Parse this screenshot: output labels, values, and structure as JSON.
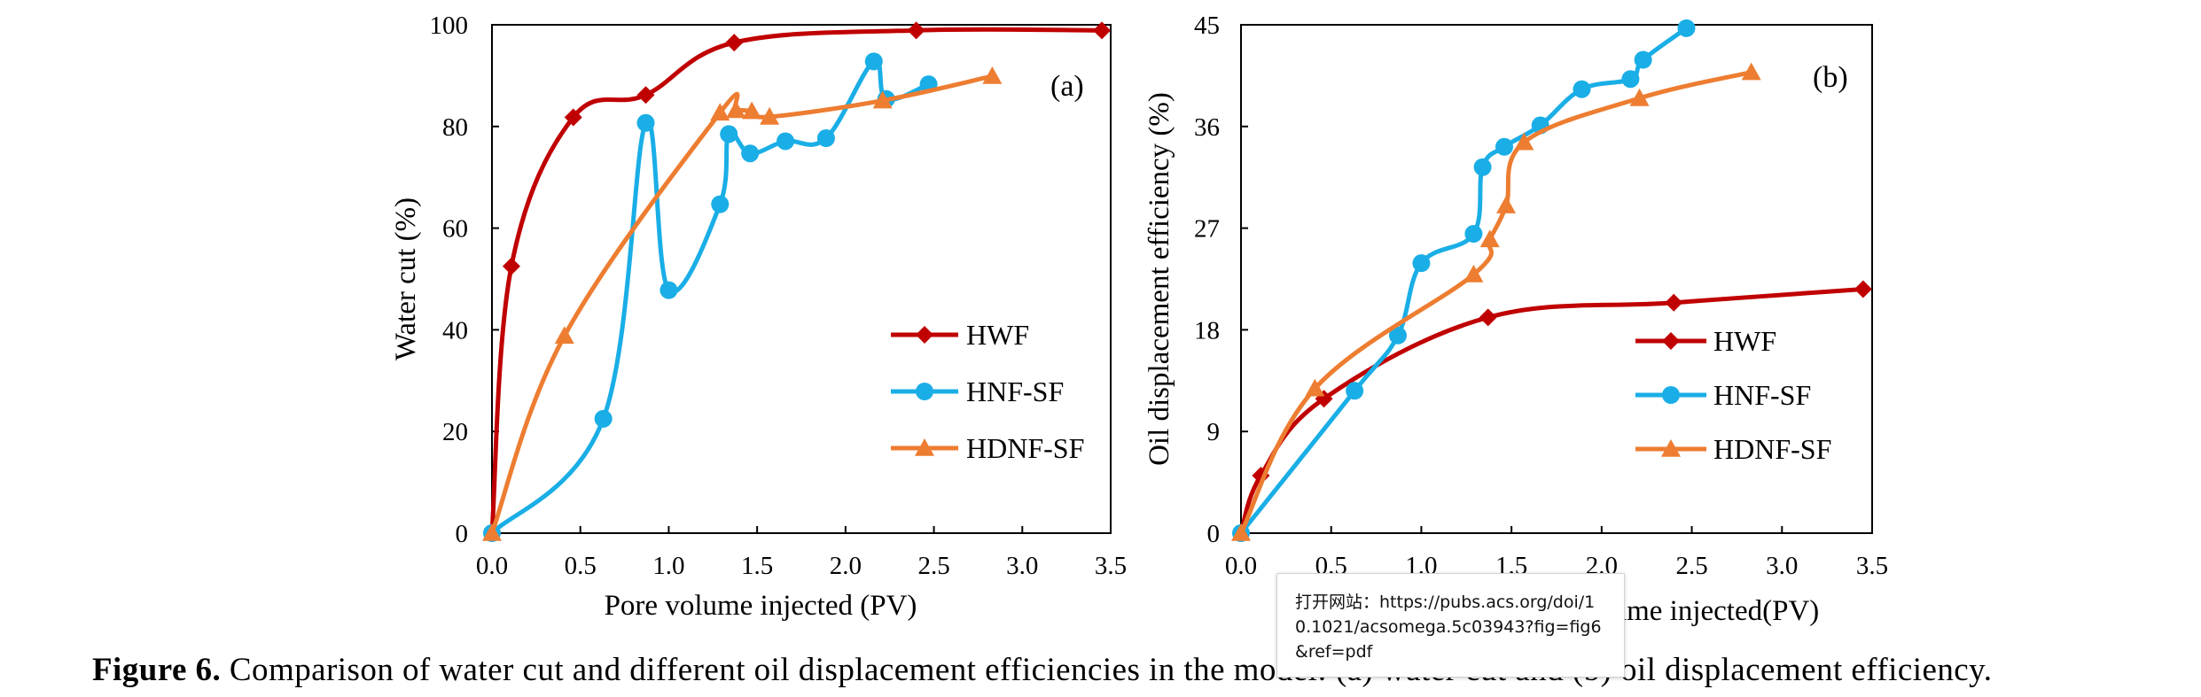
{
  "colors": {
    "hwf": "#C00000",
    "hnf": "#1AAEE6",
    "hdnf": "#ED7D31",
    "axis": "#000000"
  },
  "caption": {
    "label": "Figure 6.",
    "text": " Comparison of water cut and different oil displacement efficiencies in the model: (a) water cut and (b) oil displacement efficiency."
  },
  "tooltip": {
    "text": "打开网站：https://pubs.acs.org/doi/10.1021/acsomega.5c03943?fig=fig6&ref=pdf"
  },
  "chart_data": [
    {
      "type": "line",
      "panel_label": "(a)",
      "xlabel": "Pore volume injected (PV)",
      "ylabel": "Water cut (%)",
      "xlim": [
        0,
        3.5
      ],
      "ylim": [
        0,
        100
      ],
      "xticks": [
        "0.0",
        "0.5",
        "1.0",
        "1.5",
        "2.0",
        "2.5",
        "3.0",
        "3.5"
      ],
      "yticks": [
        "0",
        "20",
        "40",
        "60",
        "80",
        "100"
      ],
      "legend_position": "lower-right",
      "series": [
        {
          "name": "HWF",
          "marker": "diamond",
          "color_key": "hwf",
          "x": [
            0.0,
            0.11,
            0.46,
            0.87,
            1.37,
            2.4,
            3.45
          ],
          "y": [
            0,
            52.5,
            81.8,
            86.2,
            96.5,
            98.9,
            98.9
          ]
        },
        {
          "name": "HNF-SF",
          "marker": "circle",
          "color_key": "hnf",
          "x": [
            0.0,
            0.63,
            0.87,
            1.0,
            1.29,
            1.34,
            1.46,
            1.66,
            1.89,
            2.16,
            2.23,
            2.47
          ],
          "y": [
            0,
            22.5,
            80.7,
            47.8,
            64.7,
            78.5,
            74.7,
            77.1,
            77.7,
            92.8,
            85.4,
            88.3
          ]
        },
        {
          "name": "HDNF-SF",
          "marker": "triangle",
          "color_key": "hdnf",
          "x": [
            0.0,
            0.41,
            1.29,
            1.38,
            1.47,
            1.57,
            2.21,
            2.83
          ],
          "y": [
            0,
            38.8,
            82.7,
            83.2,
            83.0,
            81.9,
            85.1,
            89.9
          ]
        }
      ]
    },
    {
      "type": "line",
      "panel_label": "(b)",
      "xlabel": "Pore volume injected(PV)",
      "ylabel": "Oil displacement efficiency (%)",
      "xlim": [
        0,
        3.5
      ],
      "ylim": [
        0,
        45
      ],
      "xticks": [
        "0.0",
        "0.5",
        "1.0",
        "1.5",
        "2.0",
        "2.5",
        "3.0",
        "3.5"
      ],
      "yticks": [
        "0",
        "9",
        "18",
        "27",
        "36",
        "45"
      ],
      "legend_position": "lower-right",
      "series": [
        {
          "name": "HWF",
          "marker": "diamond",
          "color_key": "hwf",
          "x": [
            0.0,
            0.11,
            0.46,
            1.37,
            2.4,
            3.45
          ],
          "y": [
            0,
            5.1,
            11.9,
            19.1,
            20.4,
            21.6
          ]
        },
        {
          "name": "HNF-SF",
          "marker": "circle",
          "color_key": "hnf",
          "x": [
            0.0,
            0.63,
            0.87,
            1.0,
            1.29,
            1.34,
            1.46,
            1.66,
            1.89,
            2.16,
            2.23,
            2.47
          ],
          "y": [
            0,
            12.6,
            17.5,
            23.9,
            26.5,
            32.4,
            34.2,
            36.1,
            39.3,
            40.2,
            41.9,
            44.7
          ]
        },
        {
          "name": "HDNF-SF",
          "marker": "triangle",
          "color_key": "hdnf",
          "x": [
            0.0,
            0.41,
            1.29,
            1.38,
            1.47,
            1.57,
            2.21,
            2.83
          ],
          "y": [
            0,
            12.8,
            22.9,
            26.0,
            29.0,
            34.6,
            38.5,
            40.8
          ]
        }
      ]
    }
  ]
}
